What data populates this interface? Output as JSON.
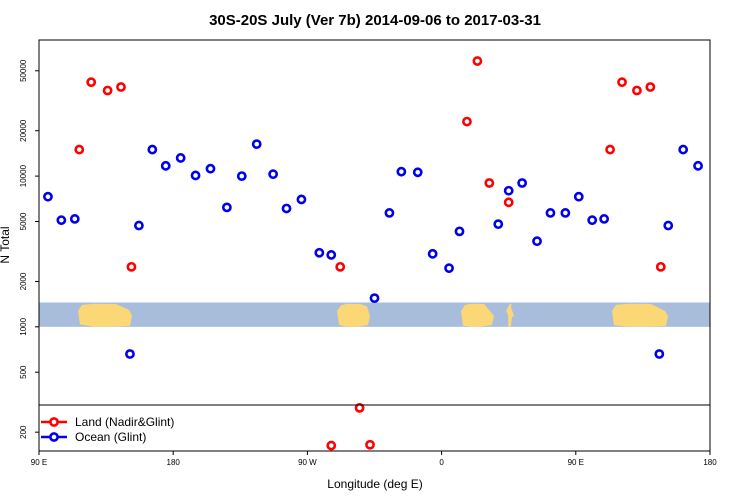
{
  "chart_data": {
    "type": "scatter",
    "title": "30S-20S July (Ver 7b)   2014-09-06 to 2017-03-31",
    "xlabel": "Longitude (deg E)",
    "ylabel": "N Total",
    "y_scale": "log",
    "xlim": [
      90,
      540
    ],
    "ylim": [
      150,
      80000
    ],
    "x_ticks": [
      {
        "value": 90,
        "label": "90 E"
      },
      {
        "value": 180,
        "label": "180"
      },
      {
        "value": 270,
        "label": "90 W"
      },
      {
        "value": 360,
        "label": "0"
      },
      {
        "value": 450,
        "label": "90 E"
      },
      {
        "value": 540,
        "label": "180"
      }
    ],
    "y_ticks": [
      {
        "value": 200,
        "label": "200"
      },
      {
        "value": 500,
        "label": "500"
      },
      {
        "value": 1000,
        "label": "1000"
      },
      {
        "value": 2000,
        "label": "2000"
      },
      {
        "value": 5000,
        "label": "5000"
      },
      {
        "value": 10000,
        "label": "10000"
      },
      {
        "value": 20000,
        "label": "20000"
      },
      {
        "value": 50000,
        "label": "50000"
      }
    ],
    "land_band": {
      "from": 1000,
      "to": 1450
    },
    "series": [
      {
        "name": "Land (Nadir&Glint)",
        "color": "#ff0000",
        "points": [
          {
            "x": 117,
            "y": 15000
          },
          {
            "x": 125,
            "y": 42000
          },
          {
            "x": 136,
            "y": 37000
          },
          {
            "x": 145,
            "y": 39000
          },
          {
            "x": 152,
            "y": 2500
          },
          {
            "x": 292,
            "y": 2500
          },
          {
            "x": 305,
            "y": 290
          },
          {
            "x": 312,
            "y": 165
          },
          {
            "x": 286,
            "y": 163
          },
          {
            "x": 377,
            "y": 23000
          },
          {
            "x": 384,
            "y": 58000
          },
          {
            "x": 392,
            "y": 9000
          },
          {
            "x": 405,
            "y": 6700
          },
          {
            "x": 473,
            "y": 15000
          },
          {
            "x": 481,
            "y": 42000
          },
          {
            "x": 491,
            "y": 37000
          },
          {
            "x": 500,
            "y": 39000
          },
          {
            "x": 507,
            "y": 2500
          }
        ]
      },
      {
        "name": "Ocean (Glint)",
        "color": "#0000ee",
        "points": [
          {
            "x": 96,
            "y": 7300
          },
          {
            "x": 105,
            "y": 5100
          },
          {
            "x": 114,
            "y": 5200
          },
          {
            "x": 151,
            "y": 660
          },
          {
            "x": 157,
            "y": 4700
          },
          {
            "x": 166,
            "y": 15000
          },
          {
            "x": 175,
            "y": 11700
          },
          {
            "x": 185,
            "y": 13200
          },
          {
            "x": 195,
            "y": 10100
          },
          {
            "x": 205,
            "y": 11200
          },
          {
            "x": 216,
            "y": 6200
          },
          {
            "x": 226,
            "y": 10000
          },
          {
            "x": 236,
            "y": 16300
          },
          {
            "x": 247,
            "y": 10300
          },
          {
            "x": 256,
            "y": 6100
          },
          {
            "x": 266,
            "y": 7000
          },
          {
            "x": 278,
            "y": 3100
          },
          {
            "x": 286,
            "y": 3000
          },
          {
            "x": 315,
            "y": 1550
          },
          {
            "x": 325,
            "y": 5700
          },
          {
            "x": 333,
            "y": 10700
          },
          {
            "x": 344,
            "y": 10600
          },
          {
            "x": 354,
            "y": 3050
          },
          {
            "x": 365,
            "y": 2450
          },
          {
            "x": 372,
            "y": 4300
          },
          {
            "x": 398,
            "y": 4800
          },
          {
            "x": 405,
            "y": 8000
          },
          {
            "x": 414,
            "y": 9000
          },
          {
            "x": 424,
            "y": 3700
          },
          {
            "x": 433,
            "y": 5700
          },
          {
            "x": 443,
            "y": 5700
          },
          {
            "x": 452,
            "y": 7300
          },
          {
            "x": 461,
            "y": 5100
          },
          {
            "x": 469,
            "y": 5200
          },
          {
            "x": 506,
            "y": 660
          },
          {
            "x": 512,
            "y": 4700
          },
          {
            "x": 522,
            "y": 15000
          },
          {
            "x": 532,
            "y": 11700
          }
        ]
      }
    ],
    "legend": {
      "placement": "bottom-left"
    }
  }
}
